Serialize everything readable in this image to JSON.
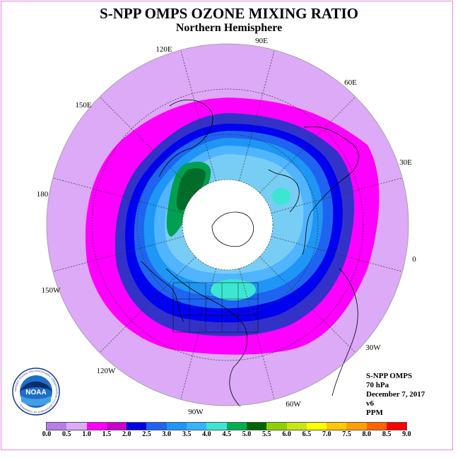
{
  "header": {
    "title": "S-NPP OMPS OZONE MIXING RATIO",
    "subtitle": "Northern Hemisphere"
  },
  "longitude_labels": {
    "lon_90e": "90E",
    "lon_60e": "60E",
    "lon_30e": "30E",
    "lon_0": "0",
    "lon_30w": "30W",
    "lon_60w": "60W",
    "lon_90w": "90W",
    "lon_120w": "120W",
    "lon_150w": "150W",
    "lon_180": "180",
    "lon_150e": "150E",
    "lon_120e": "120E"
  },
  "info": {
    "instrument": "S-NPP OMPS",
    "level": "70 hPa",
    "date": "December 7, 2017",
    "version": "v6",
    "units": "PPM"
  },
  "colorbar": {
    "tick_labels": [
      "0.0",
      "0.5",
      "1.0",
      "1.5",
      "2.0",
      "2.5",
      "3.0",
      "3.5",
      "4.0",
      "4.5",
      "5.0",
      "5.5",
      "6.0",
      "6.5",
      "7.0",
      "7.5",
      "8.0",
      "8.5",
      "9.0"
    ],
    "colors": [
      "#b57de6",
      "#dcaaf7",
      "#ff00ff",
      "#cc00cc",
      "#0000e6",
      "#1e64f0",
      "#1e96f5",
      "#32b4ff",
      "#3ce6d2",
      "#00b050",
      "#006400",
      "#8cd200",
      "#c8e614",
      "#ffff00",
      "#ffc800",
      "#ffa000",
      "#ff6400",
      "#ff0000",
      "#8c5a3c"
    ]
  },
  "map_colors": {
    "background_disc": "#dcaaf7",
    "ring_1_0": "#ff00ff",
    "ring_1_5": "#3232c8",
    "ring_2_0": "#0000f0",
    "ring_2_5": "#1e64f0",
    "ring_3_0": "#1e96f5",
    "ring_3_5": "#50b4ff",
    "ring_4_0": "#78cdf5",
    "patch_high": "#3ce6d2",
    "patch_4_5": "#00a050",
    "patch_5_0": "#006e28",
    "polar_night": "#ffffff"
  },
  "logo": {
    "text": "NOAA",
    "ring_text": "NATIONAL OCEANIC AND ATMOSPHERIC ADMINISTRATION • U.S. DEPARTMENT OF COMMERCE"
  }
}
